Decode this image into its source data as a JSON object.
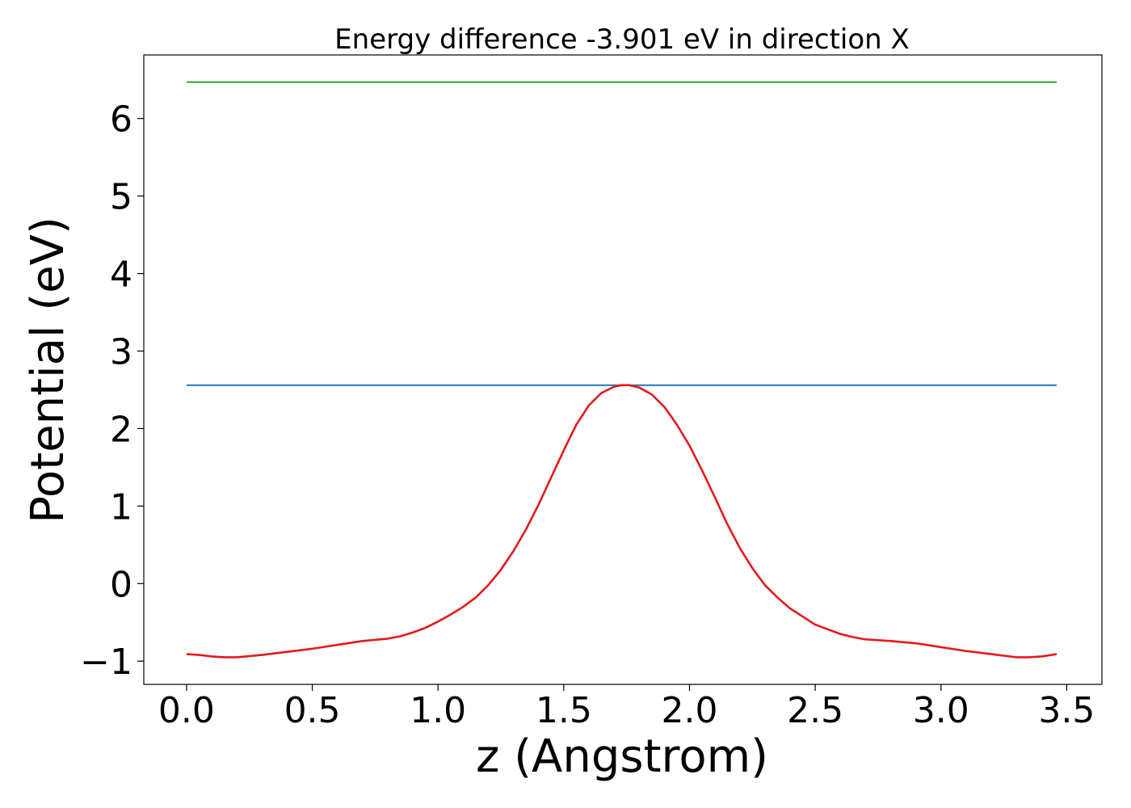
{
  "chart_data": {
    "type": "line",
    "title": "Energy difference -3.901 eV in direction X",
    "xlabel": "z (Angstrom)",
    "ylabel": "Potential (eV)",
    "xlim": [
      -0.17,
      3.64
    ],
    "ylim": [
      -1.3,
      6.82
    ],
    "x_ticks": [
      0.0,
      0.5,
      1.0,
      1.5,
      2.0,
      2.5,
      3.0,
      3.5
    ],
    "x_tick_labels": [
      "0.0",
      "0.5",
      "1.0",
      "1.5",
      "2.0",
      "2.5",
      "3.0",
      "3.5"
    ],
    "y_ticks": [
      -1,
      0,
      1,
      2,
      3,
      4,
      5,
      6
    ],
    "y_tick_labels": [
      "−1",
      "0",
      "1",
      "2",
      "3",
      "4",
      "5",
      "6"
    ],
    "grid": false,
    "series": [
      {
        "color": "#2ca02c",
        "style": "horizontal",
        "x": [
          0.0,
          3.46
        ],
        "y": [
          6.47,
          6.47
        ]
      },
      {
        "color": "#1f77b4",
        "style": "horizontal",
        "x": [
          0.0,
          3.46
        ],
        "y": [
          2.56,
          2.56
        ]
      },
      {
        "color": "#e31a1c",
        "style": "line",
        "x": [
          0.0,
          0.05,
          0.1,
          0.15,
          0.2,
          0.3,
          0.4,
          0.5,
          0.6,
          0.7,
          0.8,
          0.85,
          0.9,
          0.95,
          1.0,
          1.05,
          1.1,
          1.15,
          1.2,
          1.25,
          1.3,
          1.35,
          1.4,
          1.45,
          1.5,
          1.55,
          1.6,
          1.65,
          1.7,
          1.73,
          1.76,
          1.8,
          1.85,
          1.9,
          1.95,
          2.0,
          2.05,
          2.1,
          2.15,
          2.2,
          2.25,
          2.3,
          2.35,
          2.4,
          2.5,
          2.6,
          2.65,
          2.7,
          2.8,
          2.9,
          3.0,
          3.1,
          3.2,
          3.3,
          3.35,
          3.4,
          3.46
        ],
        "y": [
          -0.91,
          -0.92,
          -0.94,
          -0.95,
          -0.95,
          -0.92,
          -0.88,
          -0.84,
          -0.79,
          -0.74,
          -0.71,
          -0.68,
          -0.63,
          -0.57,
          -0.49,
          -0.4,
          -0.3,
          -0.18,
          -0.02,
          0.18,
          0.42,
          0.7,
          1.02,
          1.37,
          1.72,
          2.05,
          2.3,
          2.46,
          2.54,
          2.56,
          2.56,
          2.53,
          2.44,
          2.28,
          2.05,
          1.78,
          1.46,
          1.12,
          0.77,
          0.46,
          0.2,
          -0.02,
          -0.18,
          -0.32,
          -0.53,
          -0.65,
          -0.69,
          -0.72,
          -0.74,
          -0.77,
          -0.82,
          -0.87,
          -0.91,
          -0.95,
          -0.95,
          -0.94,
          -0.91
        ]
      }
    ]
  }
}
